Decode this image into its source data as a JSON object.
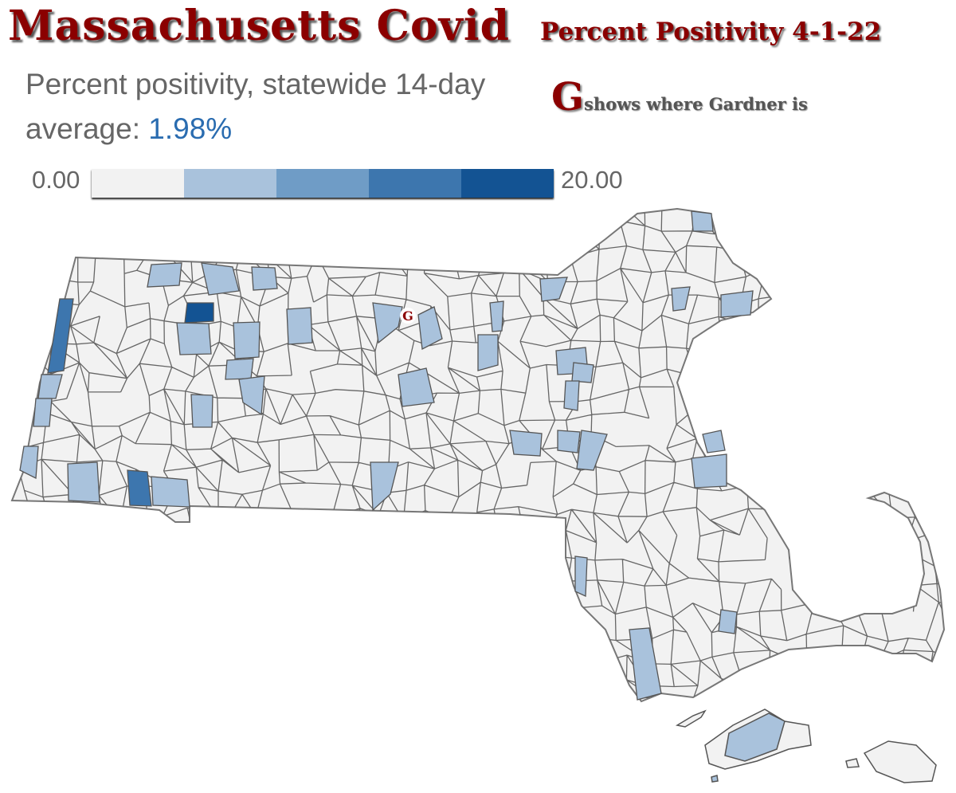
{
  "title": "Massachusetts Covid",
  "subtitle": "Percent Positivity 4-1-22",
  "description": {
    "prefix": "Percent positivity, statewide 14-day average:",
    "value": "1.98%"
  },
  "legend_note": {
    "letter": "G",
    "text": "shows where Gardner is"
  },
  "legend": {
    "min": "0.00",
    "max": "20.00",
    "colors": [
      "#f2f2f2",
      "#a9c2dc",
      "#6f9cc6",
      "#3d76ae",
      "#135393"
    ]
  },
  "marker": {
    "label": "G",
    "town": "Gardner"
  },
  "map": {
    "region": "Massachusetts",
    "fill_default": "#f2f2f2",
    "stroke": "#555555"
  }
}
